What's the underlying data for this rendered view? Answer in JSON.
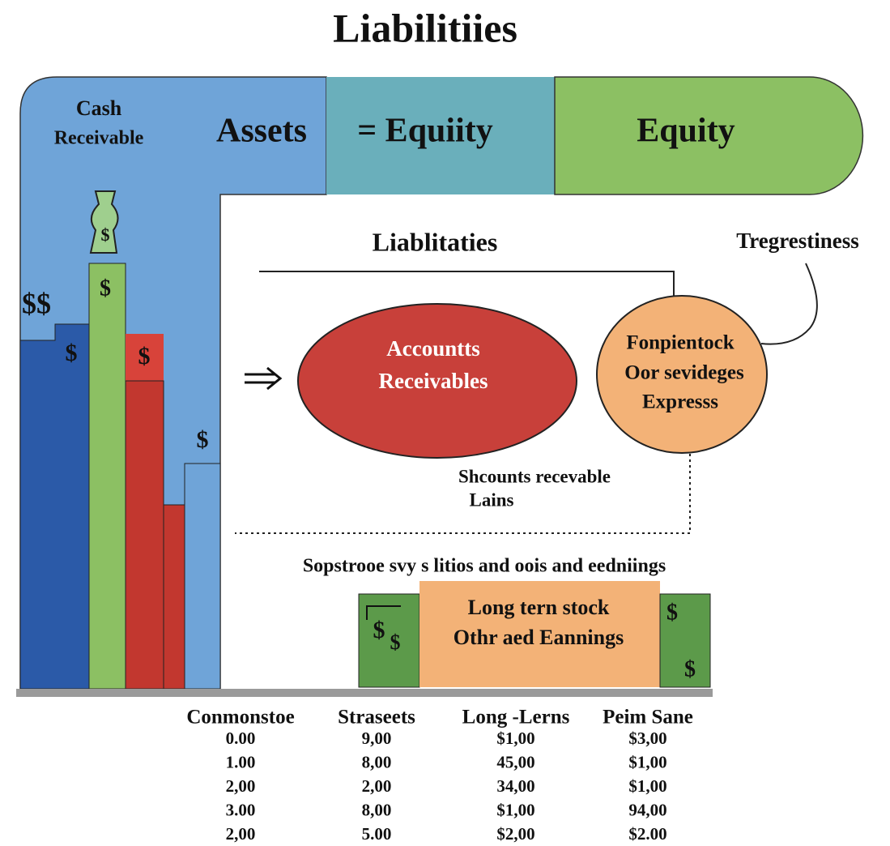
{
  "header": {
    "title": "Liabilitiies"
  },
  "banner": {
    "left_lines": [
      "Cash",
      "Receivable"
    ],
    "assets": "Assets",
    "equation": "= Equiity",
    "equity": "Equity"
  },
  "symbols": [
    "$",
    "$$",
    "$",
    "$",
    "$",
    "$",
    "$",
    "$",
    "$",
    "$"
  ],
  "section": {
    "title": "Liablitaties",
    "side_note": "Tregrestiness",
    "ellipse": [
      "Accountts",
      "Receivables"
    ],
    "circle": [
      "Fonpientock",
      "Oor sevideges",
      "Expresss"
    ],
    "note": [
      "Shcounts recevable",
      "Lains"
    ],
    "caption": "Sopstrooe svy s litios and oois and eedniings",
    "box": [
      "Long tern stock",
      "Othr aed Eannings"
    ]
  },
  "table": {
    "columns": [
      "Conmonstoe",
      "Straseets",
      "Long -Lerns",
      "Peim Sane"
    ],
    "rows": [
      [
        "0.00",
        "9,00",
        "$1,00",
        "$3,00"
      ],
      [
        "1.00",
        "8,00",
        "45,00",
        "$1,00"
      ],
      [
        "2,00",
        "2,00",
        "34,00",
        "$1,00"
      ],
      [
        "3.00",
        "8,00",
        "$1,00",
        "94,00"
      ],
      [
        "2,00",
        "5.00",
        "$2,00",
        "$2.00"
      ]
    ]
  }
}
